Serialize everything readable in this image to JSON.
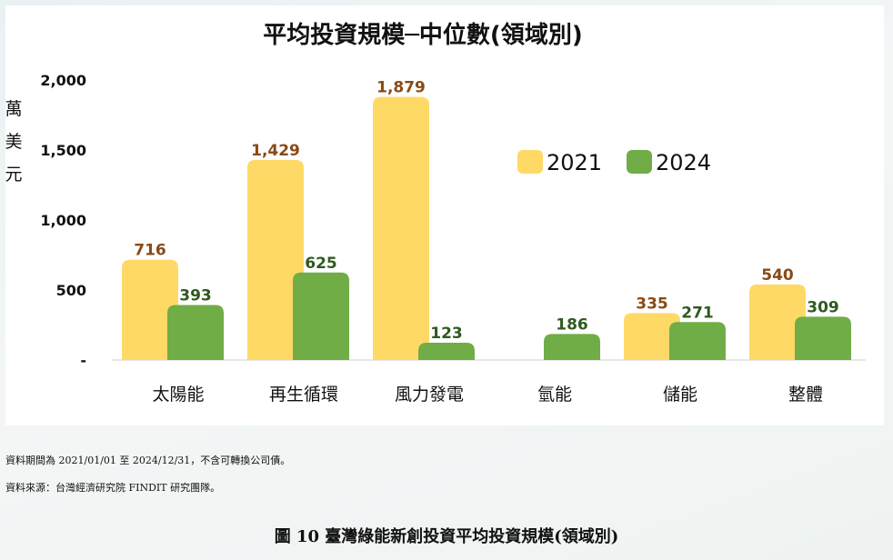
{
  "chart_data": {
    "type": "bar",
    "title": "平均投資規模─中位數(領域別)",
    "ylabel": "萬美元",
    "ylim": [
      0,
      2000
    ],
    "yticks": [
      "-",
      "500",
      "1,000",
      "1,500",
      "2,000"
    ],
    "ytick_values": [
      0,
      500,
      1000,
      1500,
      2000
    ],
    "categories": [
      "太陽能",
      "再生循環",
      "風力發電",
      "氫能",
      "儲能",
      "整體"
    ],
    "series": [
      {
        "name": "2021",
        "color": "#ffd966",
        "label_color": "#8a4a14",
        "values": [
          716,
          1429,
          1879,
          null,
          335,
          540
        ],
        "labels": [
          "716",
          "1,429",
          "1,879",
          "",
          "335",
          "540"
        ]
      },
      {
        "name": "2024",
        "color": "#70ad47",
        "label_color": "#2f5a1f",
        "values": [
          393,
          625,
          123,
          186,
          271,
          309
        ],
        "labels": [
          "393",
          "625",
          "123",
          "186",
          "271",
          "309"
        ]
      }
    ],
    "legend_position": "top-right",
    "grid": false
  },
  "notes": {
    "line1": "資料期間為 2021/01/01 至 2024/12/31，不含可轉換公司債。",
    "line2": "資料來源：台灣經濟研究院 FINDIT 研究團隊。"
  },
  "caption": "圖 10  臺灣綠能新創投資平均投資規模(領域別)"
}
